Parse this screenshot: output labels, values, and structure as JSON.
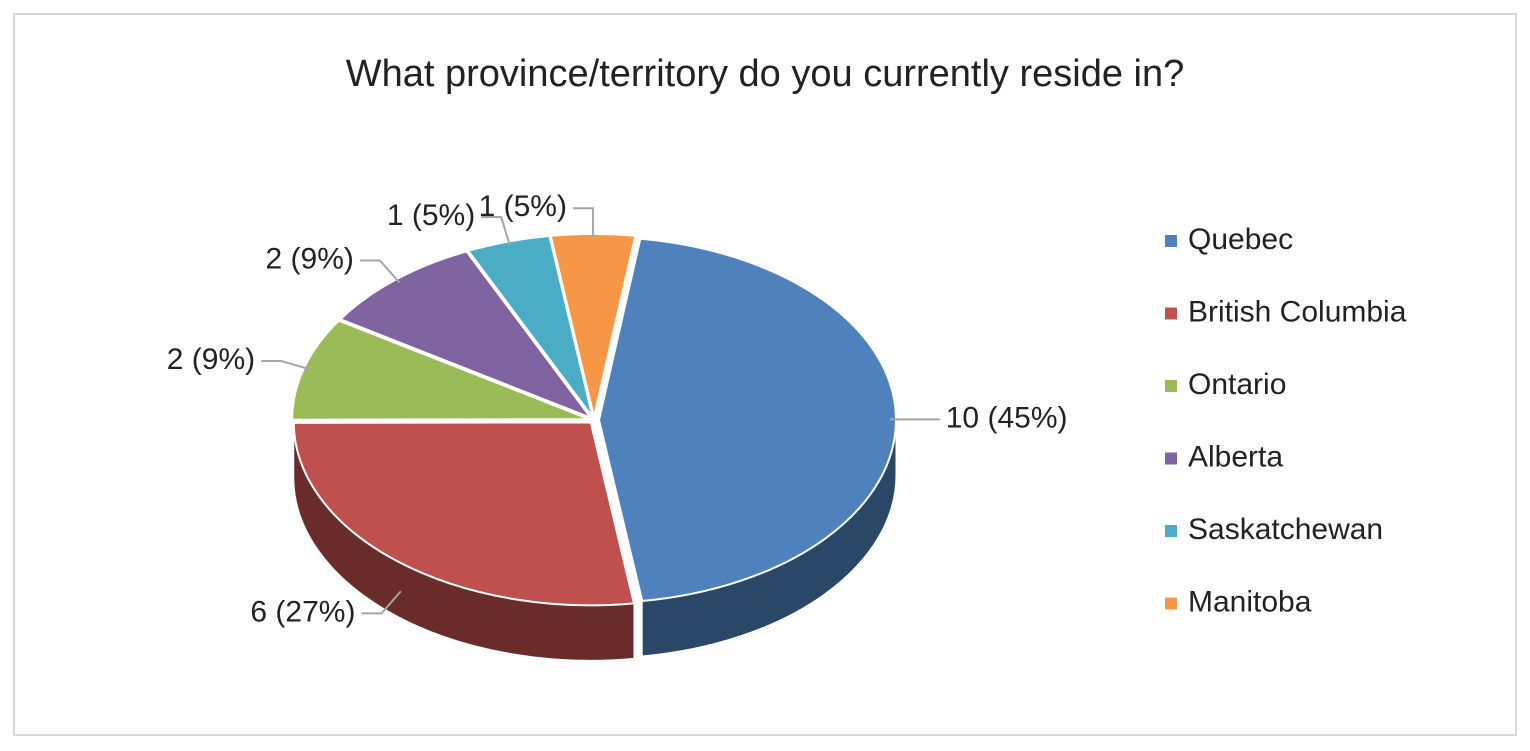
{
  "chart_data": {
    "type": "pie",
    "title": "What province/territory do you currently reside in?",
    "categories": [
      "Quebec",
      "British Columbia",
      "Ontario",
      "Alberta",
      "Saskatchewan",
      "Manitoba"
    ],
    "values": [
      10,
      6,
      2,
      2,
      1,
      1
    ],
    "value_labels": [
      "10 (45%)",
      "6 (27%)",
      "2 (9%)",
      "2 (9%)",
      "1 (5%)",
      "1 (5%)"
    ],
    "colors": [
      "#4f81bd",
      "#c0504d",
      "#9bbb59",
      "#8064a2",
      "#4bacc6",
      "#f79646"
    ],
    "legend": "right"
  }
}
